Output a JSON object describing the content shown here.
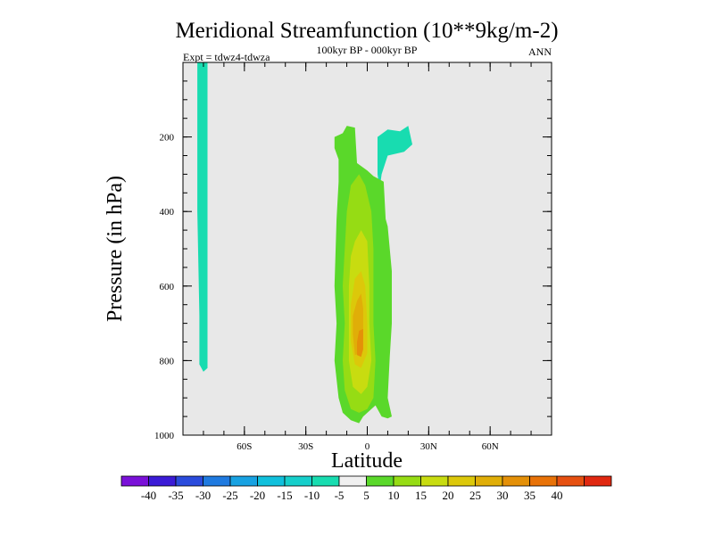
{
  "chart_data": {
    "type": "heatmap",
    "title": "Meridional Streamfunction (10**9kg/m-2)",
    "subtitle_center": "100kyr BP - 000kyr BP",
    "subtitle_left": "Expt = tdwz4-tdwza",
    "subtitle_right": "ANN",
    "xlabel": "Latitude",
    "ylabel": "Pressure (in hPa)",
    "xlim": [
      -90,
      90
    ],
    "ylim": [
      0,
      1000
    ],
    "y_reversed": true,
    "background_color": "#e8e8e8",
    "xticks": [
      {
        "value": -60,
        "label": "60S"
      },
      {
        "value": -30,
        "label": "30S"
      },
      {
        "value": 0,
        "label": "0"
      },
      {
        "value": 30,
        "label": "30N"
      },
      {
        "value": 60,
        "label": "60N"
      }
    ],
    "yticks": [
      {
        "value": 200,
        "label": "200"
      },
      {
        "value": 400,
        "label": "400"
      },
      {
        "value": 600,
        "label": "600"
      },
      {
        "value": 800,
        "label": "800"
      },
      {
        "value": 1000,
        "label": "1000"
      }
    ],
    "colorbar": {
      "colors": [
        "#7a10d8",
        "#3b1bd6",
        "#2a4bdc",
        "#1f7ae0",
        "#18a2e2",
        "#10c0dc",
        "#16cfcb",
        "#18dcb0",
        "#f0f0f0",
        "#5ad82a",
        "#96dc14",
        "#c8dc10",
        "#dcc80a",
        "#e0ae08",
        "#e49008",
        "#e87208",
        "#e65010",
        "#e02810"
      ],
      "labels": [
        "-40",
        "-35",
        "-30",
        "-25",
        "-20",
        "-15",
        "-10",
        "-5",
        "5",
        "10",
        "15",
        "20",
        "25",
        "30",
        "35",
        "40"
      ]
    },
    "regions": [
      {
        "level": -5,
        "color": "#18dcb0",
        "points": [
          [
            -82,
            0
          ],
          [
            -78,
            0
          ],
          [
            -78,
            820
          ],
          [
            -80,
            830
          ],
          [
            -82,
            810
          ],
          [
            -82,
            680
          ],
          [
            -83,
            400
          ],
          [
            -83,
            0
          ]
        ]
      },
      {
        "level": -5,
        "color": "#18dcb0",
        "points": [
          [
            6,
            340
          ],
          [
            5,
            300
          ],
          [
            5,
            200
          ],
          [
            10,
            180
          ],
          [
            16,
            185
          ],
          [
            20,
            170
          ],
          [
            22,
            220
          ],
          [
            18,
            240
          ],
          [
            10,
            250
          ],
          [
            7,
            300
          ]
        ]
      },
      {
        "level": 5,
        "color": "#5ad82a",
        "points": [
          [
            -12,
            190
          ],
          [
            -10,
            170
          ],
          [
            -6,
            175
          ],
          [
            -5,
            270
          ],
          [
            0,
            290
          ],
          [
            3,
            305
          ],
          [
            8,
            320
          ],
          [
            9,
            420
          ],
          [
            10,
            440
          ],
          [
            12,
            560
          ],
          [
            12,
            700
          ],
          [
            11,
            790
          ],
          [
            10,
            900
          ],
          [
            12,
            950
          ],
          [
            10,
            955
          ],
          [
            7,
            950
          ],
          [
            4,
            920
          ],
          [
            -2,
            950
          ],
          [
            -4,
            968
          ],
          [
            -8,
            960
          ],
          [
            -12,
            940
          ],
          [
            -14,
            900
          ],
          [
            -16,
            800
          ],
          [
            -15,
            700
          ],
          [
            -16,
            600
          ],
          [
            -15,
            420
          ],
          [
            -14,
            320
          ],
          [
            -14,
            260
          ],
          [
            -16,
            230
          ],
          [
            -16,
            200
          ]
        ]
      },
      {
        "level": 10,
        "color": "#96dc14",
        "points": [
          [
            -8,
            330
          ],
          [
            -4,
            300
          ],
          [
            -1,
            330
          ],
          [
            2,
            400
          ],
          [
            3,
            500
          ],
          [
            3,
            700
          ],
          [
            4,
            800
          ],
          [
            3,
            900
          ],
          [
            0,
            930
          ],
          [
            -4,
            940
          ],
          [
            -8,
            930
          ],
          [
            -11,
            880
          ],
          [
            -12,
            800
          ],
          [
            -11,
            700
          ],
          [
            -12,
            600
          ],
          [
            -11,
            500
          ],
          [
            -10,
            400
          ]
        ]
      },
      {
        "level": 15,
        "color": "#c8dc10",
        "points": [
          [
            -6,
            480
          ],
          [
            -3,
            450
          ],
          [
            0,
            480
          ],
          [
            1,
            600
          ],
          [
            1,
            700
          ],
          [
            2,
            800
          ],
          [
            0,
            870
          ],
          [
            -3,
            890
          ],
          [
            -7,
            870
          ],
          [
            -9,
            800
          ],
          [
            -9,
            700
          ],
          [
            -9,
            600
          ],
          [
            -8,
            520
          ]
        ]
      },
      {
        "level": 20,
        "color": "#dcc80a",
        "points": [
          [
            -6,
            580
          ],
          [
            -3,
            560
          ],
          [
            -1,
            600
          ],
          [
            0,
            700
          ],
          [
            0,
            780
          ],
          [
            -3,
            820
          ],
          [
            -6,
            810
          ],
          [
            -8,
            750
          ],
          [
            -8,
            650
          ]
        ]
      },
      {
        "level": 25,
        "color": "#e0ae08",
        "points": [
          [
            -5,
            640
          ],
          [
            -3,
            620
          ],
          [
            -2,
            660
          ],
          [
            -2,
            740
          ],
          [
            -3,
            780
          ],
          [
            -6,
            785
          ],
          [
            -7,
            730
          ],
          [
            -7,
            680
          ]
        ]
      },
      {
        "level": 30,
        "color": "#e49008",
        "points": [
          [
            -4,
            720
          ],
          [
            -2,
            715
          ],
          [
            -2,
            770
          ],
          [
            -3,
            790
          ],
          [
            -5,
            785
          ],
          [
            -5,
            750
          ]
        ]
      }
    ]
  }
}
